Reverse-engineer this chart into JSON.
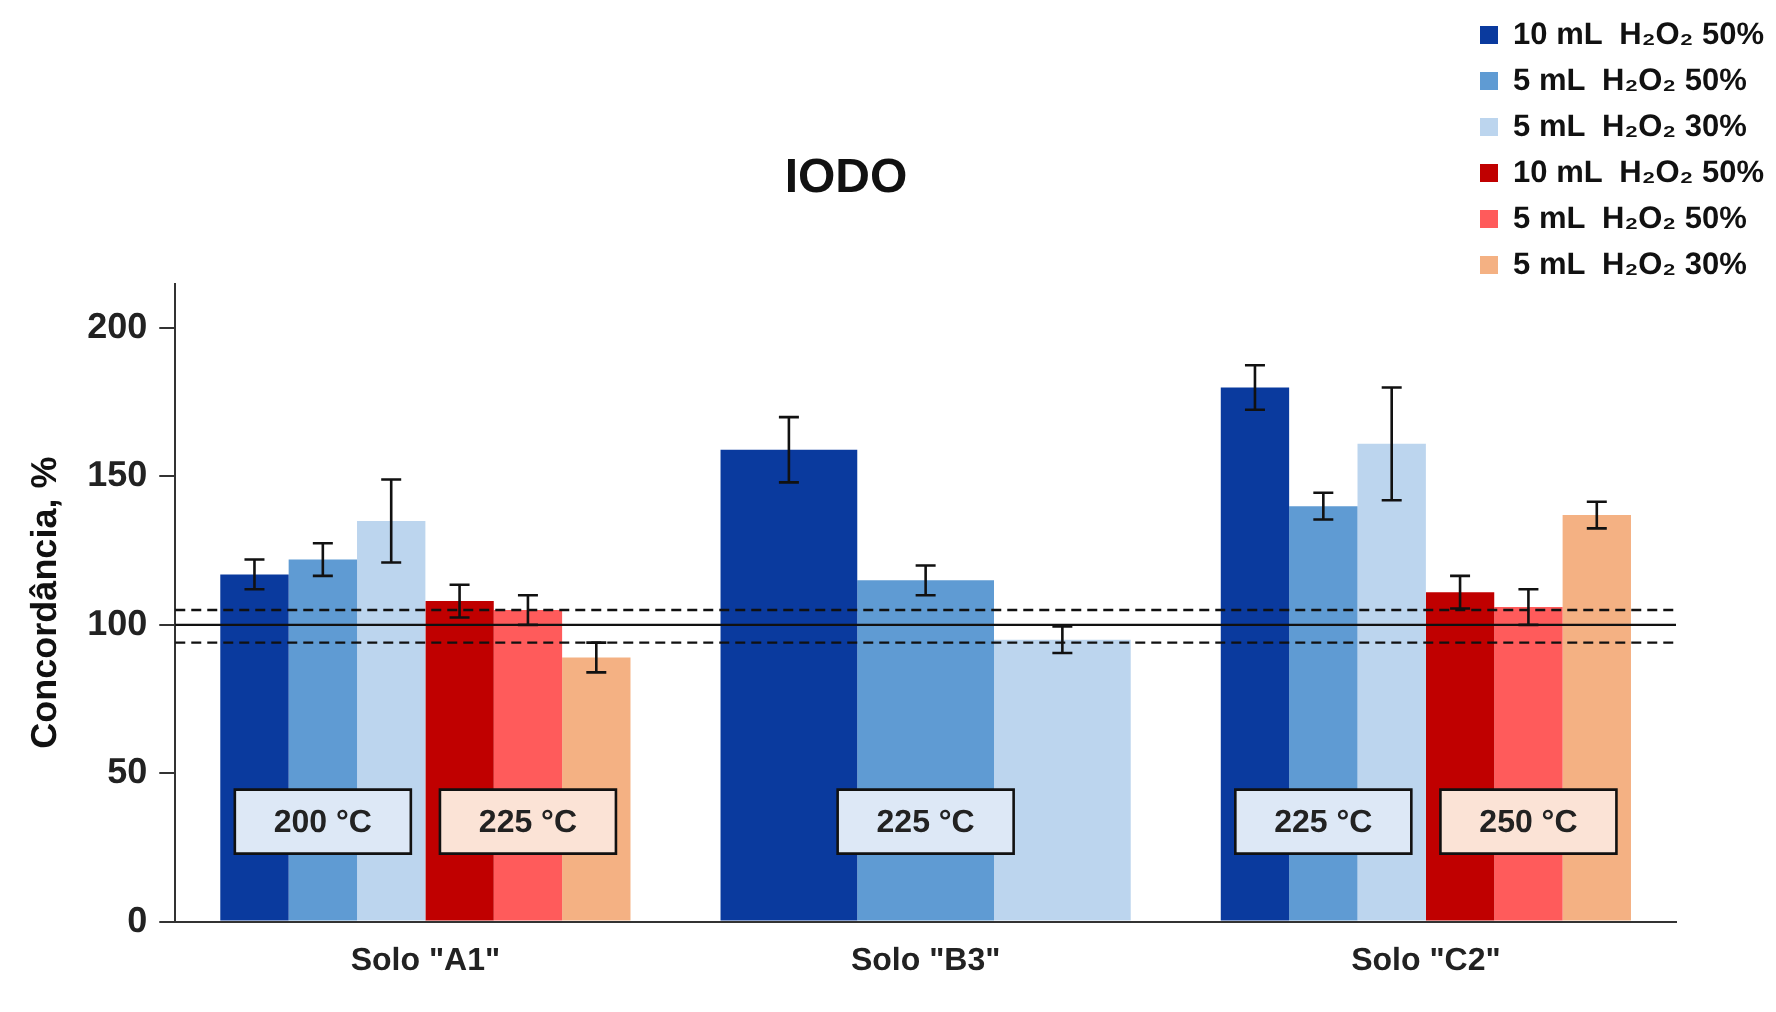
{
  "chart_data": {
    "type": "bar",
    "title": "IODO",
    "ylabel": "Concordância, %",
    "categories": [
      "Solo \"A1\"",
      "Solo \"B3\"",
      "Solo \"C2\""
    ],
    "series": [
      {
        "name": "10 mL  H₂O₂ 50%",
        "color": "#0a3a9e",
        "values": [
          117,
          159,
          180
        ],
        "errors": [
          5,
          11,
          7.5
        ]
      },
      {
        "name": "5 mL  H₂O₂ 50%",
        "color": "#5f9bd3",
        "values": [
          122,
          115,
          140
        ],
        "errors": [
          5.5,
          5,
          4.5
        ]
      },
      {
        "name": "5 mL  H₂O₂ 30%",
        "color": "#bcd5ee",
        "values": [
          135,
          95,
          161
        ],
        "errors": [
          14,
          4.5,
          19
        ]
      },
      {
        "name": "10 mL  H₂O₂ 50%",
        "color": "#c00000",
        "values": [
          108,
          null,
          111
        ],
        "errors": [
          5.5,
          null,
          5.5
        ]
      },
      {
        "name": "5 mL  H₂O₂ 50%",
        "color": "#ff5b5b",
        "values": [
          105,
          null,
          106
        ],
        "errors": [
          5,
          null,
          6
        ]
      },
      {
        "name": "5 mL  H₂O₂ 30%",
        "color": "#f4b183",
        "values": [
          89,
          null,
          137
        ],
        "errors": [
          5,
          null,
          4.5
        ]
      }
    ],
    "ylim": [
      0,
      215
    ],
    "yticks": [
      0,
      50,
      100,
      150,
      200
    ],
    "grid": false,
    "legend": "top right",
    "ref_lines": [
      {
        "axis": "y",
        "value": 100,
        "line_style": "solid"
      },
      {
        "axis": "y",
        "value": 105,
        "line_style": "dashed"
      },
      {
        "axis": "y",
        "value": 94,
        "line_style": "dashed"
      }
    ],
    "annotations": [
      "200 °C",
      "225 °C",
      "225 °C",
      "225 °C",
      "250 °C"
    ]
  }
}
